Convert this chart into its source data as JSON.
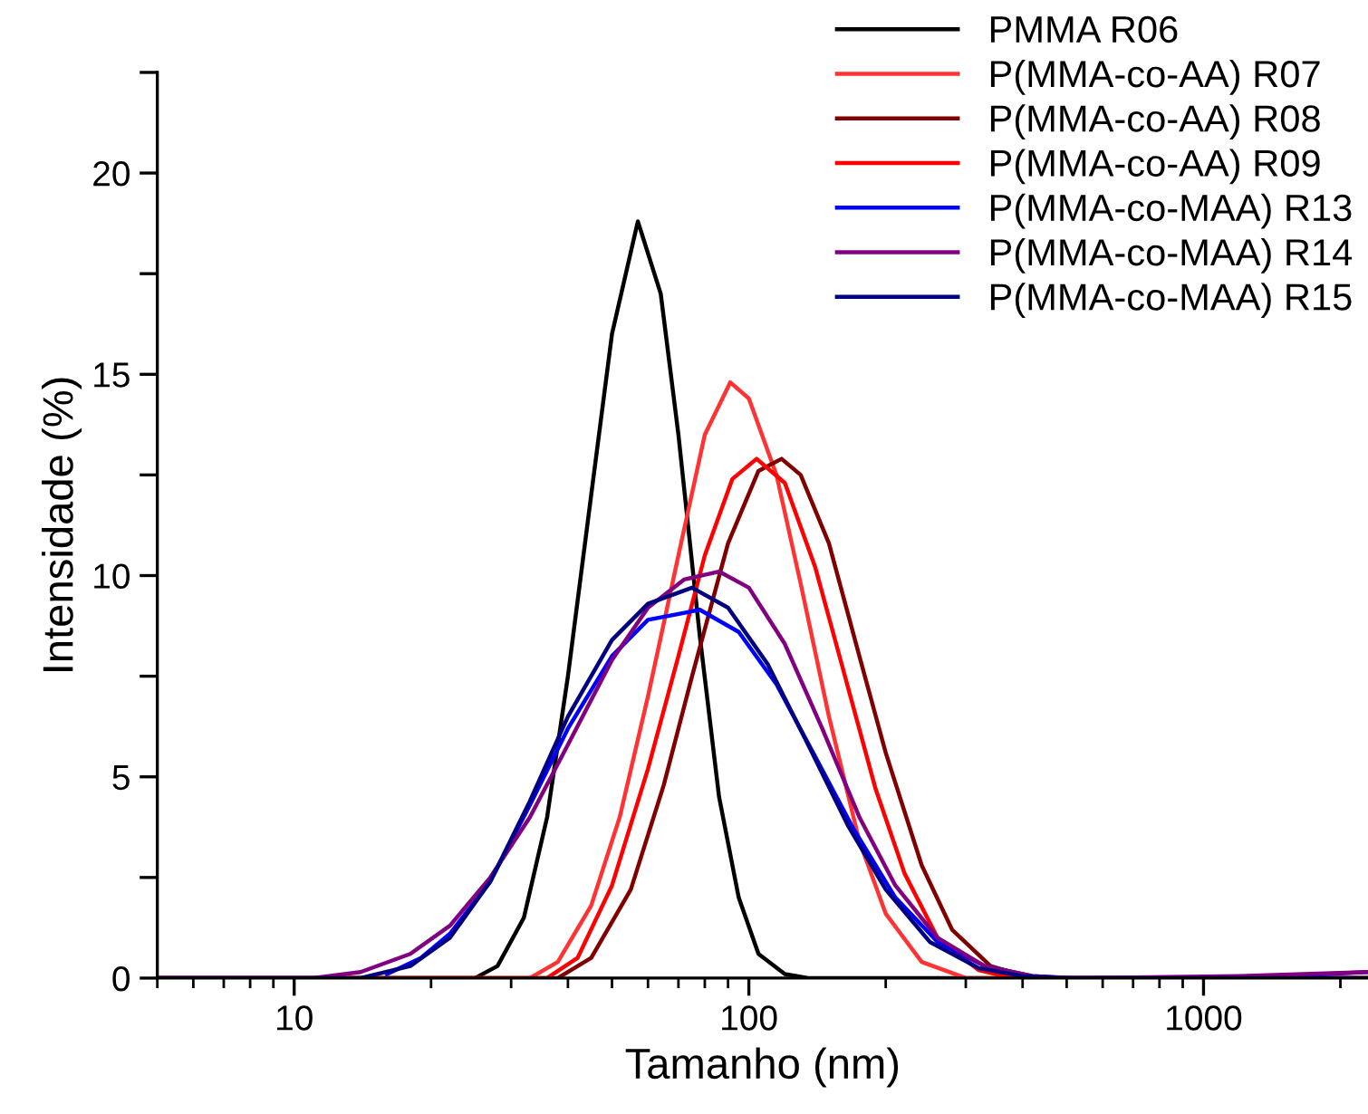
{
  "chart_data": {
    "type": "line",
    "xlabel": "Tamanho (nm)",
    "ylabel": "Intensidade (%)",
    "log": "x",
    "xlim": [
      5,
      2300
    ],
    "xticks": [
      10,
      100,
      1000
    ],
    "ylim": [
      0,
      22.5
    ],
    "yticks": [
      0,
      {
        "value": 2.5,
        "label": null
      },
      5,
      {
        "value": 7.5,
        "label": null
      },
      10,
      {
        "value": 12.5,
        "label": null
      },
      15,
      {
        "value": 17.5,
        "label": null
      },
      20,
      {
        "value": 22.5,
        "label": null
      }
    ],
    "legend": "top right",
    "grid": false,
    "marker": "none",
    "line_style": "solid",
    "series": [
      {
        "name": "PMMA R06",
        "color": "#000000",
        "x": [
          5,
          25,
          28,
          32,
          36,
          40,
          45,
          50,
          57,
          64,
          70,
          78,
          86,
          95,
          105,
          120,
          135,
          2300
        ],
        "values": [
          0,
          0,
          0.3,
          1.5,
          4,
          7.5,
          12,
          16,
          18.8,
          17,
          13.5,
          8.5,
          4.5,
          2,
          0.6,
          0.1,
          0,
          0
        ]
      },
      {
        "name": "P(MMA-co-AA) R07",
        "color": "#ff3333",
        "x": [
          5,
          33,
          38,
          45,
          52,
          60,
          70,
          80,
          91,
          100,
          115,
          130,
          150,
          175,
          200,
          240,
          300,
          2300
        ],
        "values": [
          0,
          0,
          0.4,
          1.8,
          4,
          7,
          10.5,
          13.5,
          14.8,
          14.4,
          12.5,
          9.8,
          6.5,
          3.4,
          1.6,
          0.4,
          0,
          0
        ]
      },
      {
        "name": "P(MMA-co-AA) R08",
        "color": "#800000",
        "x": [
          5,
          38,
          45,
          55,
          65,
          75,
          90,
          105,
          118,
          130,
          150,
          175,
          200,
          240,
          280,
          340,
          420,
          2300
        ],
        "values": [
          0,
          0,
          0.5,
          2.2,
          4.8,
          7.5,
          10.8,
          12.6,
          12.9,
          12.5,
          10.8,
          8,
          5.6,
          2.8,
          1.2,
          0.3,
          0,
          0
        ]
      },
      {
        "name": "P(MMA-co-AA) R09",
        "color": "#ff0000",
        "x": [
          5,
          36,
          42,
          50,
          60,
          70,
          80,
          92,
          104,
          120,
          140,
          160,
          190,
          220,
          260,
          320,
          380,
          2300
        ],
        "values": [
          0,
          0,
          0.5,
          2.3,
          5.2,
          8,
          10.5,
          12.4,
          12.9,
          12.3,
          10.2,
          7.8,
          4.7,
          2.6,
          1,
          0.2,
          0,
          0
        ]
      },
      {
        "name": "P(MMA-co-MAA) R13",
        "color": "#0000ff",
        "x": [
          16,
          19,
          22,
          27,
          33,
          40,
          50,
          60,
          78,
          95,
          115,
          140,
          170,
          210,
          260,
          330,
          420,
          500,
          1000,
          1500,
          2300
        ],
        "values": [
          0.1,
          0.5,
          1.1,
          2.4,
          4.3,
          6.2,
          8,
          8.9,
          9.15,
          8.6,
          7.3,
          5.5,
          3.7,
          2,
          0.9,
          0.3,
          0.05,
          0,
          0,
          0.05,
          0.15
        ]
      },
      {
        "name": "P(MMA-co-MAA) R14",
        "color": "#800080",
        "x": [
          5,
          11,
          14,
          18,
          22,
          27,
          33,
          40,
          50,
          60,
          72,
          86,
          100,
          120,
          145,
          175,
          210,
          260,
          330,
          420,
          520,
          1200,
          2300
        ],
        "values": [
          0,
          0,
          0.15,
          0.6,
          1.3,
          2.5,
          4,
          5.8,
          7.9,
          9.2,
          9.9,
          10.1,
          9.7,
          8.3,
          6.2,
          4,
          2.3,
          1,
          0.3,
          0.05,
          0,
          0.05,
          0.15
        ]
      },
      {
        "name": "P(MMA-co-MAA) R15",
        "color": "#000080",
        "x": [
          5,
          14,
          18,
          22,
          27,
          33,
          40,
          50,
          60,
          75,
          90,
          110,
          135,
          165,
          200,
          250,
          320,
          400,
          500,
          2300
        ],
        "values": [
          0,
          0,
          0.3,
          1,
          2.4,
          4.4,
          6.5,
          8.4,
          9.3,
          9.7,
          9.2,
          7.8,
          5.8,
          3.8,
          2.2,
          0.9,
          0.25,
          0.05,
          0,
          0
        ]
      }
    ]
  }
}
